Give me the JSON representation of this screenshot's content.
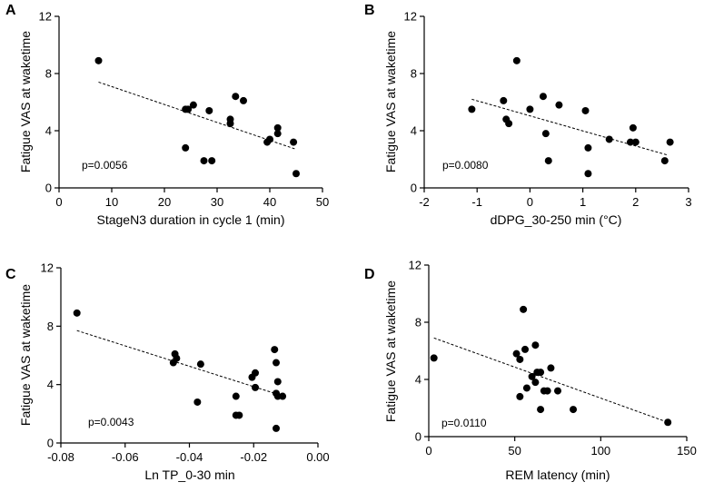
{
  "chart_data": [
    {
      "type": "scatter",
      "panel_label": "A",
      "ylabel": "Fatigue VAS at waketime",
      "xlabel": "StageN3 duration in cycle 1 (min)",
      "xlim": [
        0,
        50
      ],
      "ylim": [
        0,
        12
      ],
      "xticks": [
        0,
        10,
        20,
        30,
        40,
        50
      ],
      "xtick_labels": [
        "0",
        "10",
        "20",
        "30",
        "40",
        "50"
      ],
      "yticks": [
        0,
        4,
        8,
        12
      ],
      "ytick_labels": [
        "0",
        "4",
        "8",
        "12"
      ],
      "pvalue": "p=0.0056",
      "x": [
        7.5,
        24,
        24.5,
        25.5,
        27.5,
        28.5,
        29,
        32.5,
        32.5,
        33.5,
        35,
        39.5,
        40,
        41.5,
        41.5,
        44.5,
        45
      ],
      "y": [
        8.9,
        5.5,
        5.5,
        5.8,
        1.9,
        5.4,
        1.9,
        4.8,
        4.5,
        6.4,
        6.1,
        3.2,
        3.4,
        4.2,
        3.8,
        3.2,
        1.0
      ],
      "y_extra_point": {
        "x": 24,
        "y": 2.8
      },
      "trend": {
        "x": [
          7.5,
          45
        ],
        "y": [
          7.4,
          2.7
        ]
      }
    },
    {
      "type": "scatter",
      "panel_label": "B",
      "ylabel": "Fatigue VAS at waketime",
      "xlabel": "dDPG_30-250 min (°C)",
      "xlim": [
        -2,
        3
      ],
      "ylim": [
        0,
        12
      ],
      "xticks": [
        -2,
        -1,
        0,
        1,
        2,
        3
      ],
      "xtick_labels": [
        "-2",
        "-1",
        "0",
        "1",
        "2",
        "3"
      ],
      "yticks": [
        0,
        4,
        8,
        12
      ],
      "ytick_labels": [
        "0",
        "4",
        "8",
        "12"
      ],
      "pvalue": "p=0.0080",
      "x": [
        -1.1,
        -0.5,
        -0.45,
        -0.4,
        -0.25,
        0.0,
        0.25,
        0.3,
        0.35,
        0.55,
        1.05,
        1.1,
        1.1,
        1.5,
        1.9,
        1.95,
        2.0,
        2.55,
        2.65
      ],
      "y": [
        5.5,
        6.1,
        4.8,
        4.5,
        8.9,
        5.5,
        6.4,
        3.8,
        1.9,
        5.8,
        5.4,
        2.8,
        1.0,
        3.4,
        3.2,
        4.2,
        3.2,
        1.9,
        3.2
      ],
      "trend": {
        "x": [
          -1.1,
          2.6
        ],
        "y": [
          6.2,
          2.3
        ]
      }
    },
    {
      "type": "scatter",
      "panel_label": "C",
      "ylabel": "Fatigue VAS at waketime",
      "xlabel": "Ln TP_0-30 min",
      "xlim": [
        -0.08,
        0.0
      ],
      "ylim": [
        0,
        12
      ],
      "xticks": [
        -0.08,
        -0.06,
        -0.04,
        -0.02,
        0.0
      ],
      "xtick_labels": [
        "-0.08",
        "-0.06",
        "-0.04",
        "-0.02",
        "0.00"
      ],
      "yticks": [
        0,
        4,
        8,
        12
      ],
      "ytick_labels": [
        "0",
        "4",
        "8",
        "12"
      ],
      "pvalue": "p=0.0043",
      "x": [
        -0.075,
        -0.045,
        -0.0445,
        -0.044,
        -0.0365,
        -0.0375,
        -0.0255,
        -0.0255,
        -0.0245,
        -0.0205,
        -0.0195,
        -0.0195,
        -0.0135,
        -0.013,
        -0.0125,
        -0.013,
        -0.0125,
        -0.011,
        -0.013
      ],
      "y": [
        8.9,
        5.5,
        6.1,
        5.8,
        5.4,
        2.8,
        3.2,
        1.9,
        1.9,
        4.5,
        4.8,
        3.8,
        6.4,
        5.5,
        4.2,
        3.4,
        3.2,
        3.2,
        1.0
      ],
      "trend": {
        "x": [
          -0.075,
          -0.012
        ],
        "y": [
          7.7,
          3.3
        ]
      }
    },
    {
      "type": "scatter",
      "panel_label": "D",
      "ylabel": "Fatigue VAS at waketime",
      "xlabel": "REM latency (min)",
      "xlim": [
        0,
        150
      ],
      "ylim": [
        0,
        12
      ],
      "xticks": [
        0,
        50,
        100,
        150
      ],
      "xtick_labels": [
        "0",
        "50",
        "100",
        "150"
      ],
      "yticks": [
        0,
        4,
        8,
        12
      ],
      "ytick_labels": [
        "0",
        "4",
        "8",
        "12"
      ],
      "pvalue": "p=0.0110",
      "x": [
        3,
        51,
        53,
        53,
        55,
        56,
        57,
        60,
        62,
        62,
        63,
        65,
        65,
        67,
        69,
        71,
        75,
        84,
        139
      ],
      "y": [
        5.5,
        5.8,
        5.4,
        2.8,
        8.9,
        6.1,
        3.4,
        4.2,
        6.4,
        3.8,
        4.5,
        4.5,
        1.9,
        3.2,
        3.2,
        4.8,
        3.2,
        1.9,
        1.0
      ],
      "trend": {
        "x": [
          3,
          139
        ],
        "y": [
          6.9,
          1.0
        ]
      }
    }
  ]
}
